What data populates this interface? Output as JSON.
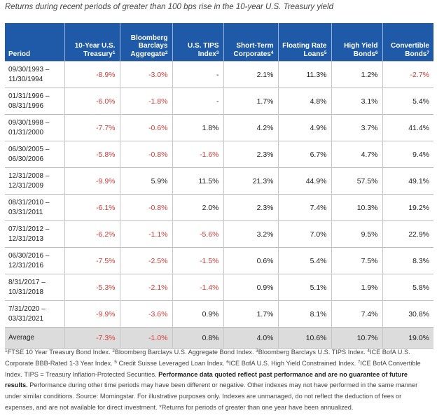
{
  "title": "Returns during recent periods of greater than 100 bps rise in the 10-year U.S. Treasury yield",
  "chart_data": {
    "type": "table",
    "title": "Returns during recent periods of greater than 100 bps rise in the 10-year U.S. Treasury yield",
    "columns": [
      {
        "label": "Period",
        "sup": ""
      },
      {
        "label": "10-Year U.S. Treasury",
        "sup": "1"
      },
      {
        "label": "Bloomberg Barclays Aggregate",
        "sup": "2"
      },
      {
        "label": "U.S. TIPS Index",
        "sup": "3"
      },
      {
        "label": "Short-Term Corporates",
        "sup": "4"
      },
      {
        "label": "Floating Rate Loans",
        "sup": "5"
      },
      {
        "label": "High Yield Bonds",
        "sup": "6"
      },
      {
        "label": "Convertible Bonds",
        "sup": "7"
      }
    ],
    "header_lines": [
      [
        "Period"
      ],
      [
        "10-Year U.S.",
        "Treasury"
      ],
      [
        "Bloomberg",
        "Barclays",
        "Aggregate"
      ],
      [
        "U.S. TIPS",
        "Index"
      ],
      [
        "Short-Term",
        "Corporates"
      ],
      [
        "Floating Rate",
        "Loans"
      ],
      [
        "High Yield",
        "Bonds"
      ],
      [
        "Convertible",
        "Bonds"
      ]
    ],
    "rows": [
      {
        "period": [
          "09/30/1993 –",
          "11/30/1994"
        ],
        "values": [
          "-8.9%",
          "-3.0%",
          "-",
          "2.1%",
          "11.3%",
          "1.2%",
          "-2.7%"
        ]
      },
      {
        "period": [
          "01/31/1996 –",
          "08/31/1996"
        ],
        "values": [
          "-6.0%",
          "-1.8%",
          "-",
          "1.7%",
          "4.8%",
          "3.1%",
          "5.4%"
        ]
      },
      {
        "period": [
          "09/30/1998 –",
          "01/31/2000"
        ],
        "values": [
          "-7.7%",
          "-0.6%",
          "1.8%",
          "4.2%",
          "4.9%",
          "3.7%",
          "41.4%"
        ]
      },
      {
        "period": [
          "06/30/2005 –",
          "06/30/2006"
        ],
        "values": [
          "-5.8%",
          "-0.8%",
          "-1.6%",
          "2.3%",
          "6.7%",
          "4.7%",
          "9.4%"
        ]
      },
      {
        "period": [
          "12/31/2008 –",
          "12/31/2009"
        ],
        "values": [
          "-9.9%",
          "5.9%",
          "11.5%",
          "21.3%",
          "44.9%",
          "57.5%",
          "49.1%"
        ]
      },
      {
        "period": [
          "08/31/2010 –",
          "03/31/2011"
        ],
        "values": [
          "-6.1%",
          "-0.8%",
          "2.0%",
          "2.3%",
          "7.4%",
          "10.3%",
          "19.2%"
        ]
      },
      {
        "period": [
          "07/31/2012 –",
          "12/31/2013"
        ],
        "values": [
          "-6.2%",
          "-1.1%",
          "-5.6%",
          "3.2%",
          "7.0%",
          "9.5%",
          "22.9%"
        ]
      },
      {
        "period": [
          "06/30/2016 –",
          "12/31/2016"
        ],
        "values": [
          "-7.5%",
          "-2.5%",
          "-1.5%",
          "0.6%",
          "5.4%",
          "7.5%",
          "8.3%"
        ]
      },
      {
        "period": [
          "8/31/2017 –",
          "10/31/2018"
        ],
        "values": [
          "-5.3%",
          "-2.1%",
          "-1.4%",
          "0.9%",
          "5.1%",
          "1.9%",
          "5.8%"
        ]
      },
      {
        "period": [
          "7/31/2020 –",
          "03/31/2021"
        ],
        "values": [
          "-9.9%",
          "-3.6%",
          "0.9%",
          "1.7%",
          "8.1%",
          "7.4%",
          "30.8%"
        ]
      }
    ],
    "average": {
      "label": "Average",
      "values": [
        "-7.3%",
        "-1.0%",
        "0.8%",
        "4.0%",
        "10.6%",
        "10.7%",
        "19.0%"
      ]
    }
  },
  "colors": {
    "header_bg": "#1f5aa8",
    "negative": "#d93a35",
    "average_bg": "#dcdcdc"
  },
  "footnote": {
    "line1": [
      {
        "sup": "1"
      },
      {
        "t": "FTSE 10 Year Treasury Bond Index. "
      },
      {
        "sup": "2"
      },
      {
        "t": "Bloomberg Barclays U.S. Aggregate Bond Index. "
      },
      {
        "sup": "3"
      },
      {
        "t": "Bloomberg Barclays U.S. TIPS Index. "
      },
      {
        "sup": "4"
      },
      {
        "t": "ICE BofA U.S. Corporate BBB-Rated 1-3 Year Index. "
      },
      {
        "sup": "5"
      },
      {
        "t": " Credit Suisse Leveraged Loan Index. "
      },
      {
        "sup": "6"
      },
      {
        "t": "ICE BofA U.S. High Yield Constrained Index. "
      },
      {
        "sup": "7"
      },
      {
        "t": "ICE BofA Convertible Index. TIPS = Treasury Inflation-Protected Securities. "
      },
      {
        "b": "Performance data quoted reflect past performance and are no guarantee of future results."
      },
      {
        "t": " Performance during other time periods may have been different or negative. Other indexes may not have performed in the same manner under similar conditions. Source: Morningstar. For illustrative purposes only. Indexes are unmanaged, do not reflect the deduction of fees or expenses, and are not available for direct investment. *Returns for periods of greater than one year have been annualized."
      }
    ]
  }
}
